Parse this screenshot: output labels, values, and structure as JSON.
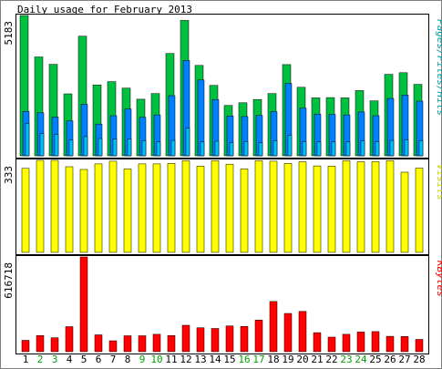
{
  "chart_data": {
    "type": "bar",
    "title": "Daily usage for February 2013",
    "days": [
      "1",
      "2",
      "3",
      "4",
      "5",
      "6",
      "7",
      "8",
      "9",
      "10",
      "11",
      "12",
      "13",
      "14",
      "15",
      "16",
      "17",
      "18",
      "19",
      "20",
      "21",
      "22",
      "23",
      "24",
      "25",
      "26",
      "27",
      "28"
    ],
    "weekend_days": [
      "2",
      "3",
      "9",
      "10",
      "16",
      "17",
      "23",
      "24"
    ],
    "panels": [
      {
        "id": "hits-panel",
        "ylabel": "Pages/Files/Hits",
        "ymax_label": "5183",
        "ymax": 5183,
        "series": [
          {
            "name": "Hits",
            "color": "#00c040",
            "values": [
              5183,
              3650,
              3380,
              2290,
              4420,
              2620,
              2740,
              2500,
              2090,
              2300,
              3780,
              5000,
              3340,
              2600,
              1860,
              1960,
              2080,
              2300,
              3370,
              2530,
              2140,
              2150,
              2140,
              2410,
              2030,
              3010,
              3070,
              2640
            ]
          },
          {
            "name": "Files",
            "color": "#0080ff",
            "values": [
              1640,
              1590,
              1430,
              1290,
              1900,
              1170,
              1480,
              1730,
              1420,
              1510,
              2220,
              3520,
              2800,
              2080,
              1470,
              1450,
              1490,
              1630,
              2680,
              1760,
              1540,
              1530,
              1510,
              1620,
              1480,
              2120,
              2240,
              2020
            ]
          },
          {
            "name": "Pages",
            "color": "#00c0ff",
            "values": [
              1200,
              820,
              790,
              580,
              710,
              640,
              620,
              620,
              560,
              510,
              570,
              1020,
              510,
              540,
              490,
              530,
              480,
              560,
              760,
              520,
              510,
              510,
              510,
              550,
              520,
              570,
              590,
              560
            ]
          }
        ]
      },
      {
        "id": "visits-panel",
        "ylabel": "Visits",
        "ymax_label": "333",
        "ymax": 333,
        "series": [
          {
            "name": "Visits",
            "color": "#ffff00",
            "values": [
              304,
              333,
              333,
              310,
              300,
              320,
              330,
              302,
              320,
              320,
              322,
              332,
              312,
              332,
              319,
              302,
              332,
              330,
              322,
              328,
              313,
              312,
              332,
              328,
              329,
              332,
              290,
              305
            ]
          }
        ]
      },
      {
        "id": "kbytes-panel",
        "ylabel": "KBytes",
        "ymax_label": "616718",
        "ymax": 616718,
        "series": [
          {
            "name": "KBytes",
            "color": "#ff0000",
            "values": [
              74000,
              105000,
              91000,
              163000,
              616718,
              110000,
              71000,
              104000,
              104000,
              113000,
              105000,
              172000,
              156000,
              151000,
              168000,
              165000,
              206000,
              327000,
              249000,
              262000,
              124000,
              95000,
              113000,
              128000,
              131000,
              100000,
              99000,
              80000
            ]
          }
        ]
      }
    ]
  }
}
